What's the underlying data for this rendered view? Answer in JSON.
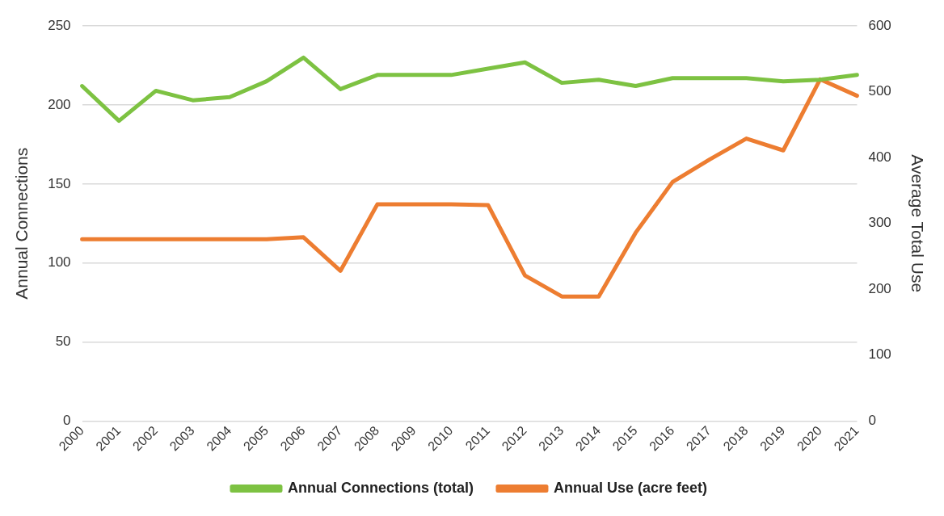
{
  "chart_data": {
    "type": "line",
    "ylabel": "Annual Connections",
    "y2label": "Average Total Use",
    "categories": [
      "2000",
      "2001",
      "2002",
      "2003",
      "2004",
      "2005",
      "2006",
      "2007",
      "2008",
      "2009",
      "2010",
      "2011",
      "2012",
      "2013",
      "2014",
      "2015",
      "2016",
      "2017",
      "2018",
      "2019",
      "2020",
      "2021"
    ],
    "series": [
      {
        "name": "Annual Connections (total)",
        "color": "#7dc242",
        "values": [
          212,
          190,
          209,
          203,
          205,
          215,
          230,
          210,
          219,
          219,
          219,
          223,
          227,
          214,
          216,
          212,
          217,
          217,
          217,
          215,
          216,
          219
        ]
      },
      {
        "name": "Annual Use (acre feet)",
        "color": "#ed7d31",
        "axis": "y2",
        "values": [
          276,
          276,
          276,
          276,
          276,
          276,
          279,
          228,
          329,
          329,
          329,
          328,
          221,
          189,
          189,
          286,
          363,
          397,
          429,
          411,
          519,
          494
        ]
      }
    ],
    "ylim": [
      0,
      250
    ],
    "yticks": [
      0,
      50,
      100,
      150,
      200,
      250
    ],
    "y2lim": [
      0,
      600
    ],
    "y2ticks": [
      0,
      100,
      200,
      300,
      400,
      500,
      600
    ],
    "grid": "y",
    "legend": "bottom",
    "marker": "none",
    "line_style": "solid"
  }
}
